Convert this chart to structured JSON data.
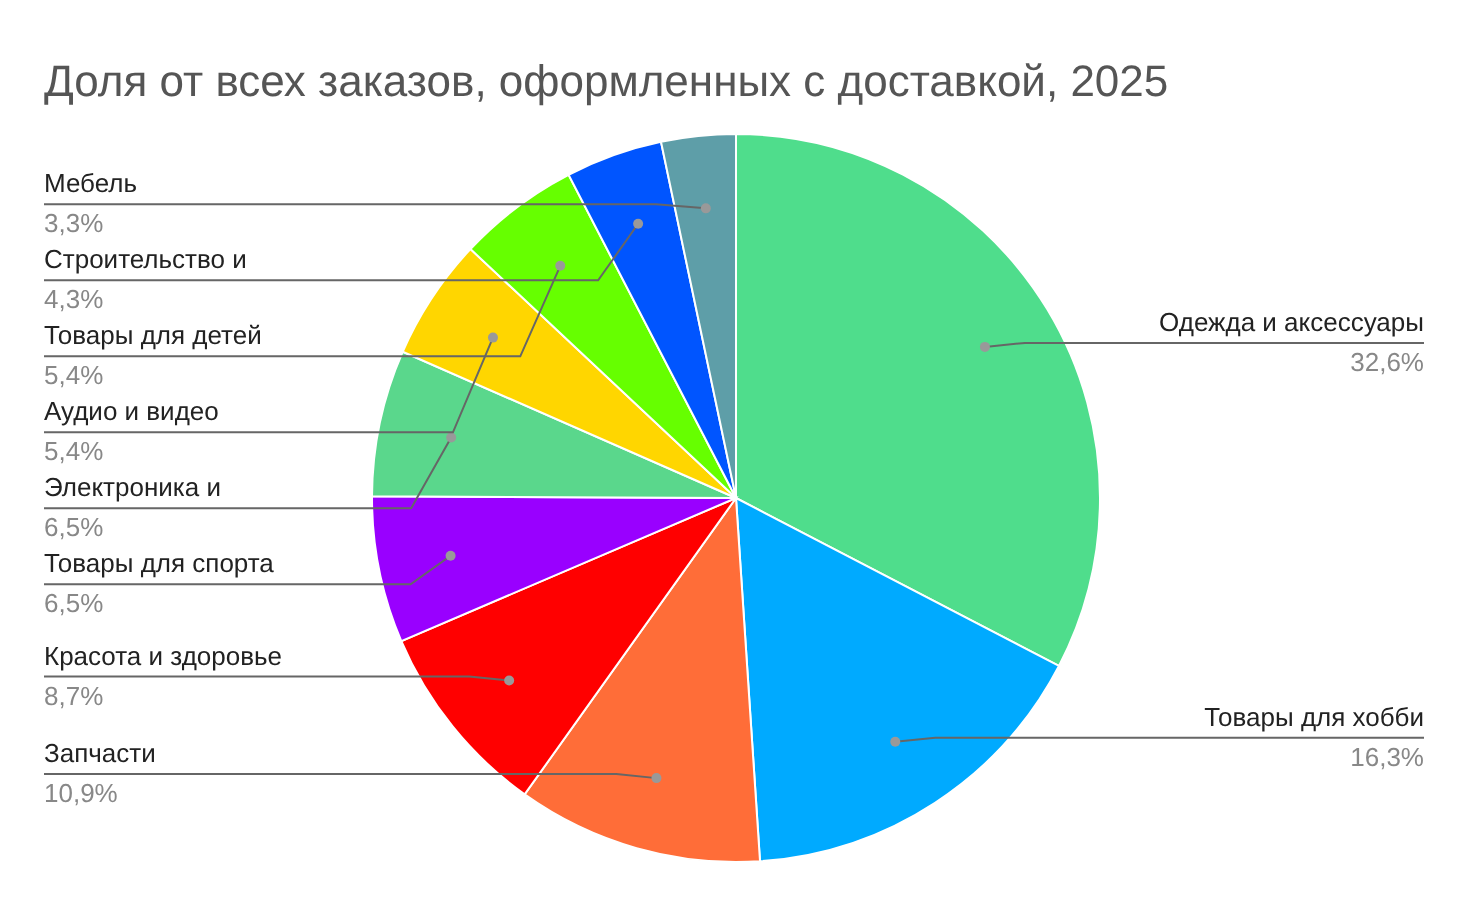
{
  "chart_data": {
    "type": "pie",
    "title": "Доля от всех заказов, оформленных с доставкой, 2025",
    "categories": [
      "Одежда и аксессуары",
      "Товары для хобби",
      "Запчасти",
      "Красота и здоровье",
      "Товары для спорта",
      "Электроника и",
      "Аудио и видео",
      "Товары для детей",
      "Строительство и",
      "Мебель"
    ],
    "values": [
      32.6,
      16.3,
      10.9,
      8.7,
      6.5,
      6.5,
      5.4,
      5.4,
      4.3,
      3.3
    ],
    "value_labels": [
      "32,6%",
      "16,3%",
      "10,9%",
      "8,7%",
      "6,5%",
      "6,5%",
      "5,4%",
      "5,4%",
      "4,3%",
      "3,3%"
    ],
    "colors": [
      "#4fdd8c",
      "#00aaff",
      "#ff6d38",
      "#ff0000",
      "#9900ff",
      "#5ad78c",
      "#ffd600",
      "#66ff00",
      "#0055ff",
      "#5e9ea8"
    ]
  }
}
